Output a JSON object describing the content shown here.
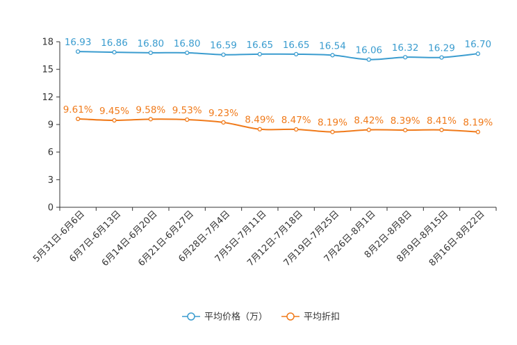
{
  "chart_data": {
    "type": "line",
    "title": "",
    "xlabel": "",
    "ylabel": "",
    "ylim": [
      0,
      18
    ],
    "yticks": [
      0,
      3,
      6,
      9,
      12,
      15,
      18
    ],
    "grid": false,
    "legend_position": "bottom-center",
    "categories": [
      "5月31日-6月6日",
      "6月7日-6月13日",
      "6月14日-6月20日",
      "6月21日-6月27日",
      "6月28日-7月4日",
      "7月5日-7月11日",
      "7月12日-7月18日",
      "7月19日-7月25日",
      "7月26日-8月1日",
      "8月2日-8月8日",
      "8月9日-8月15日",
      "8月16日-8月22日"
    ],
    "series": [
      {
        "name": "平均价格（万）",
        "color": "#3a9ccf",
        "values": [
          16.93,
          16.86,
          16.8,
          16.8,
          16.59,
          16.65,
          16.65,
          16.54,
          16.06,
          16.32,
          16.29,
          16.7
        ],
        "labels": [
          "16.93",
          "16.86",
          "16.80",
          "16.80",
          "16.59",
          "16.65",
          "16.65",
          "16.54",
          "16.06",
          "16.32",
          "16.29",
          "16.70"
        ]
      },
      {
        "name": "平均折扣",
        "color": "#f07a1a",
        "values": [
          9.61,
          9.45,
          9.58,
          9.53,
          9.23,
          8.49,
          8.47,
          8.19,
          8.42,
          8.39,
          8.41,
          8.19
        ],
        "labels": [
          "9.61%",
          "9.45%",
          "9.58%",
          "9.53%",
          "9.23%",
          "8.49%",
          "8.47%",
          "8.19%",
          "8.42%",
          "8.39%",
          "8.41%",
          "8.19%"
        ]
      }
    ]
  }
}
